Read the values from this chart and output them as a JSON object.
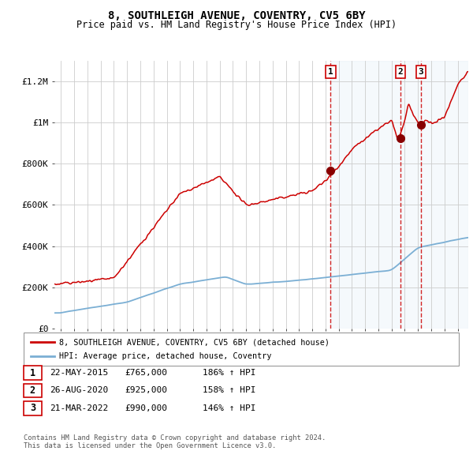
{
  "title": "8, SOUTHLEIGH AVENUE, COVENTRY, CV5 6BY",
  "subtitle": "Price paid vs. HM Land Registry's House Price Index (HPI)",
  "hpi_line_color": "#7bafd4",
  "price_line_color": "#cc0000",
  "sale_marker_color": "#880000",
  "dashed_line_color": "#cc0000",
  "highlight_fill_color": "#d8e8f4",
  "background_color": "#ffffff",
  "grid_color": "#cccccc",
  "ytick_labels": [
    "£0",
    "£200K",
    "£400K",
    "£600K",
    "£800K",
    "£1M",
    "£1.2M"
  ],
  "ytick_values": [
    0,
    200000,
    400000,
    600000,
    800000,
    1000000,
    1200000
  ],
  "ylim": [
    0,
    1300000
  ],
  "xlim_start": 1994.5,
  "xlim_end": 2025.8,
  "sale_dates": [
    2015.39,
    2020.66,
    2022.22
  ],
  "sale_prices": [
    765000,
    925000,
    990000
  ],
  "sale_labels": [
    "1",
    "2",
    "3"
  ],
  "legend_line1": "8, SOUTHLEIGH AVENUE, COVENTRY, CV5 6BY (detached house)",
  "legend_line2": "HPI: Average price, detached house, Coventry",
  "table_data": [
    [
      "1",
      "22-MAY-2015",
      "£765,000",
      "186% ↑ HPI"
    ],
    [
      "2",
      "26-AUG-2020",
      "£925,000",
      "158% ↑ HPI"
    ],
    [
      "3",
      "21-MAR-2022",
      "£990,000",
      "146% ↑ HPI"
    ]
  ],
  "footnote": "Contains HM Land Registry data © Crown copyright and database right 2024.\nThis data is licensed under the Open Government Licence v3.0.",
  "font_family": "DejaVu Sans Mono"
}
